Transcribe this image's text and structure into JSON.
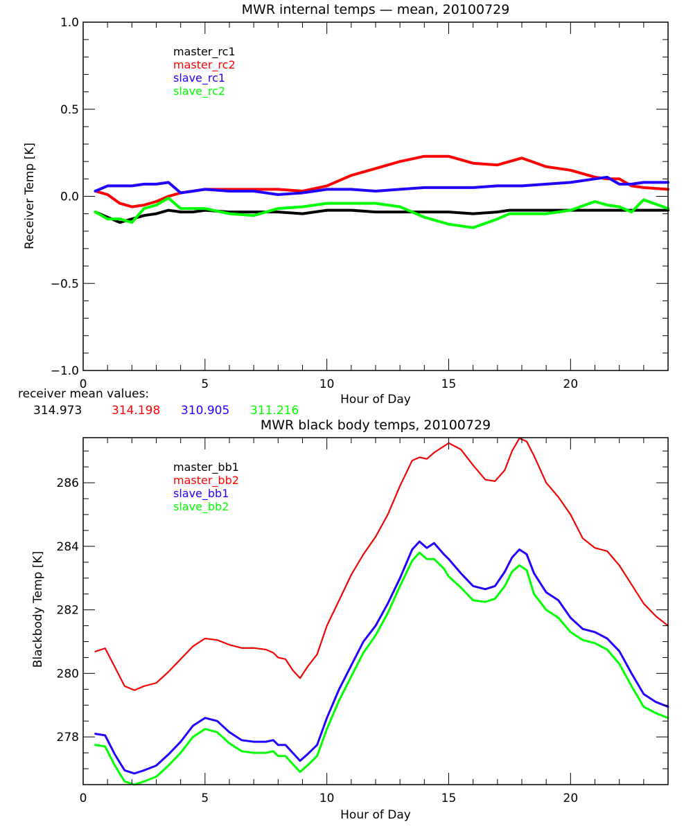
{
  "colors": {
    "black": "#000000",
    "red": "#ff0000",
    "blue": "#2000ff",
    "green": "#00ff00"
  },
  "chart_data": [
    {
      "type": "line",
      "title": "MWR internal temps — mean, 20100729",
      "xlabel": "Hour of Day",
      "ylabel": "Receiver Temp [K]",
      "xlim": [
        0,
        24
      ],
      "ylim": [
        -1.0,
        1.0
      ],
      "xticks": [
        0,
        5,
        10,
        15,
        20
      ],
      "xtick_labels": [
        "0",
        "5",
        "10",
        "15",
        "20"
      ],
      "yticks": [
        -1.0,
        -0.5,
        0.0,
        0.5,
        1.0
      ],
      "ytick_labels": [
        "−1.0",
        "−0.5",
        "0.0",
        "0.5",
        "1.0"
      ],
      "legend_position": "top-left",
      "grid": false,
      "x": [
        0.5,
        1.0,
        1.5,
        2.0,
        2.5,
        3.0,
        3.5,
        4.0,
        4.5,
        5.0,
        6.0,
        7.0,
        8.0,
        9.0,
        10.0,
        11.0,
        12.0,
        13.0,
        14.0,
        15.0,
        16.0,
        17.0,
        17.5,
        18.0,
        19.0,
        20.0,
        21.0,
        21.5,
        22.0,
        22.5,
        23.0,
        24.0
      ],
      "series": [
        {
          "name": "master_rc1",
          "color_key": "black",
          "width": 4,
          "values": [
            -0.09,
            -0.12,
            -0.15,
            -0.13,
            -0.11,
            -0.1,
            -0.08,
            -0.09,
            -0.09,
            -0.08,
            -0.09,
            -0.09,
            -0.09,
            -0.1,
            -0.08,
            -0.08,
            -0.09,
            -0.09,
            -0.09,
            -0.09,
            -0.1,
            -0.09,
            -0.08,
            -0.08,
            -0.08,
            -0.08,
            -0.08,
            -0.08,
            -0.08,
            -0.08,
            -0.08,
            -0.08
          ]
        },
        {
          "name": "master_rc2",
          "color_key": "red",
          "width": 4,
          "values": [
            0.03,
            0.01,
            -0.04,
            -0.06,
            -0.05,
            -0.03,
            0.0,
            0.02,
            0.03,
            0.04,
            0.04,
            0.04,
            0.04,
            0.03,
            0.06,
            0.12,
            0.16,
            0.2,
            0.23,
            0.23,
            0.19,
            0.18,
            0.2,
            0.22,
            0.17,
            0.15,
            0.11,
            0.1,
            0.1,
            0.06,
            0.05,
            0.04
          ]
        },
        {
          "name": "slave_rc1",
          "color_key": "blue",
          "width": 4,
          "values": [
            0.03,
            0.06,
            0.06,
            0.06,
            0.07,
            0.07,
            0.08,
            0.02,
            0.03,
            0.04,
            0.03,
            0.03,
            0.01,
            0.02,
            0.04,
            0.04,
            0.03,
            0.04,
            0.05,
            0.05,
            0.05,
            0.06,
            0.06,
            0.06,
            0.07,
            0.08,
            0.1,
            0.11,
            0.07,
            0.07,
            0.08,
            0.08
          ]
        },
        {
          "name": "slave_rc2",
          "color_key": "green",
          "width": 4,
          "values": [
            -0.09,
            -0.13,
            -0.13,
            -0.15,
            -0.07,
            -0.05,
            -0.01,
            -0.07,
            -0.07,
            -0.07,
            -0.1,
            -0.11,
            -0.07,
            -0.06,
            -0.04,
            -0.04,
            -0.04,
            -0.06,
            -0.12,
            -0.16,
            -0.18,
            -0.13,
            -0.1,
            -0.1,
            -0.1,
            -0.08,
            -0.03,
            -0.05,
            -0.06,
            -0.09,
            -0.02,
            -0.07
          ]
        }
      ],
      "annotation": {
        "label": "receiver mean values:",
        "values": [
          {
            "text": "314.973",
            "color_key": "black"
          },
          {
            "text": "314.198",
            "color_key": "red"
          },
          {
            "text": "310.905",
            "color_key": "blue"
          },
          {
            "text": "311.216",
            "color_key": "green"
          }
        ]
      }
    },
    {
      "type": "line",
      "title": "MWR black body temps, 20100729",
      "xlabel": "Hour of Day",
      "ylabel": "Blackbody Temp [K]",
      "xlim": [
        0,
        24
      ],
      "ylim": [
        276.5,
        287.42
      ],
      "xticks": [
        0,
        5,
        10,
        15,
        20
      ],
      "xtick_labels": [
        "0",
        "5",
        "10",
        "15",
        "20"
      ],
      "yticks": [
        278,
        280,
        282,
        284,
        286
      ],
      "ytick_labels": [
        "278",
        "280",
        "282",
        "284",
        "286"
      ],
      "legend_position": "top-left",
      "grid": false,
      "x": [
        0.5,
        0.9,
        1.3,
        1.7,
        2.1,
        2.5,
        3.0,
        3.5,
        4.0,
        4.5,
        5.0,
        5.5,
        6.0,
        6.5,
        7.0,
        7.5,
        7.8,
        8.0,
        8.3,
        8.6,
        8.9,
        9.2,
        9.6,
        10.0,
        10.5,
        11.0,
        11.5,
        12.0,
        12.5,
        13.0,
        13.5,
        13.8,
        14.1,
        14.4,
        14.8,
        15.0,
        15.5,
        16.0,
        16.5,
        16.9,
        17.3,
        17.6,
        17.9,
        18.2,
        18.5,
        19.0,
        19.5,
        20.0,
        20.5,
        21.0,
        21.5,
        22.0,
        22.5,
        23.0,
        23.5,
        24.0
      ],
      "series": [
        {
          "name": "master_bb1",
          "color_key": "black",
          "width": 2,
          "values": [
            280.69,
            280.79,
            280.2,
            279.6,
            279.47,
            279.6,
            279.7,
            280.05,
            280.45,
            280.85,
            281.1,
            281.05,
            280.9,
            280.8,
            280.8,
            280.75,
            280.65,
            280.5,
            280.45,
            280.1,
            279.85,
            280.2,
            280.6,
            281.5,
            282.3,
            283.1,
            283.75,
            284.3,
            285.0,
            285.9,
            286.7,
            286.8,
            286.75,
            286.95,
            287.15,
            287.25,
            287.05,
            286.55,
            286.1,
            286.05,
            286.4,
            287.0,
            287.4,
            287.3,
            286.85,
            286.0,
            285.55,
            285.0,
            284.25,
            283.95,
            283.85,
            283.4,
            282.8,
            282.2,
            281.8,
            281.5
          ]
        },
        {
          "name": "master_bb2",
          "color_key": "red",
          "width": 2,
          "values": [
            280.69,
            280.79,
            280.2,
            279.6,
            279.47,
            279.6,
            279.7,
            280.05,
            280.45,
            280.85,
            281.1,
            281.05,
            280.9,
            280.8,
            280.8,
            280.75,
            280.65,
            280.5,
            280.45,
            280.1,
            279.85,
            280.2,
            280.6,
            281.5,
            282.3,
            283.1,
            283.75,
            284.3,
            285.0,
            285.9,
            286.7,
            286.8,
            286.75,
            286.95,
            287.15,
            287.25,
            287.05,
            286.55,
            286.1,
            286.05,
            286.4,
            287.0,
            287.4,
            287.3,
            286.85,
            286.0,
            285.55,
            285.0,
            284.25,
            283.95,
            283.85,
            283.4,
            282.8,
            282.2,
            281.8,
            281.5
          ]
        },
        {
          "name": "slave_bb1",
          "color_key": "blue",
          "width": 3,
          "values": [
            278.1,
            278.05,
            277.45,
            276.95,
            276.85,
            276.95,
            277.1,
            277.45,
            277.85,
            278.35,
            278.6,
            278.5,
            278.15,
            277.9,
            277.85,
            277.85,
            277.9,
            277.75,
            277.75,
            277.5,
            277.25,
            277.45,
            277.75,
            278.6,
            279.5,
            280.25,
            281.0,
            281.5,
            282.2,
            283.0,
            283.9,
            284.15,
            283.95,
            284.1,
            283.75,
            283.6,
            283.15,
            282.75,
            282.65,
            282.75,
            283.2,
            283.65,
            283.9,
            283.75,
            283.15,
            282.55,
            282.3,
            281.75,
            281.4,
            281.3,
            281.1,
            280.7,
            280.0,
            279.35,
            279.1,
            278.95
          ]
        },
        {
          "name": "slave_bb2",
          "color_key": "green",
          "width": 3,
          "values": [
            277.75,
            277.7,
            277.1,
            276.6,
            276.5,
            276.6,
            276.75,
            277.1,
            277.5,
            278.0,
            278.25,
            278.15,
            277.8,
            277.55,
            277.5,
            277.5,
            277.55,
            277.4,
            277.4,
            277.15,
            276.9,
            277.1,
            277.4,
            278.25,
            279.15,
            279.9,
            280.65,
            281.2,
            281.9,
            282.75,
            283.55,
            283.8,
            283.6,
            283.6,
            283.3,
            283.05,
            282.7,
            282.3,
            282.25,
            282.35,
            282.75,
            283.2,
            283.4,
            283.25,
            282.5,
            282.0,
            281.75,
            281.3,
            281.05,
            280.95,
            280.75,
            280.3,
            279.6,
            278.95,
            278.75,
            278.6
          ]
        }
      ]
    }
  ]
}
